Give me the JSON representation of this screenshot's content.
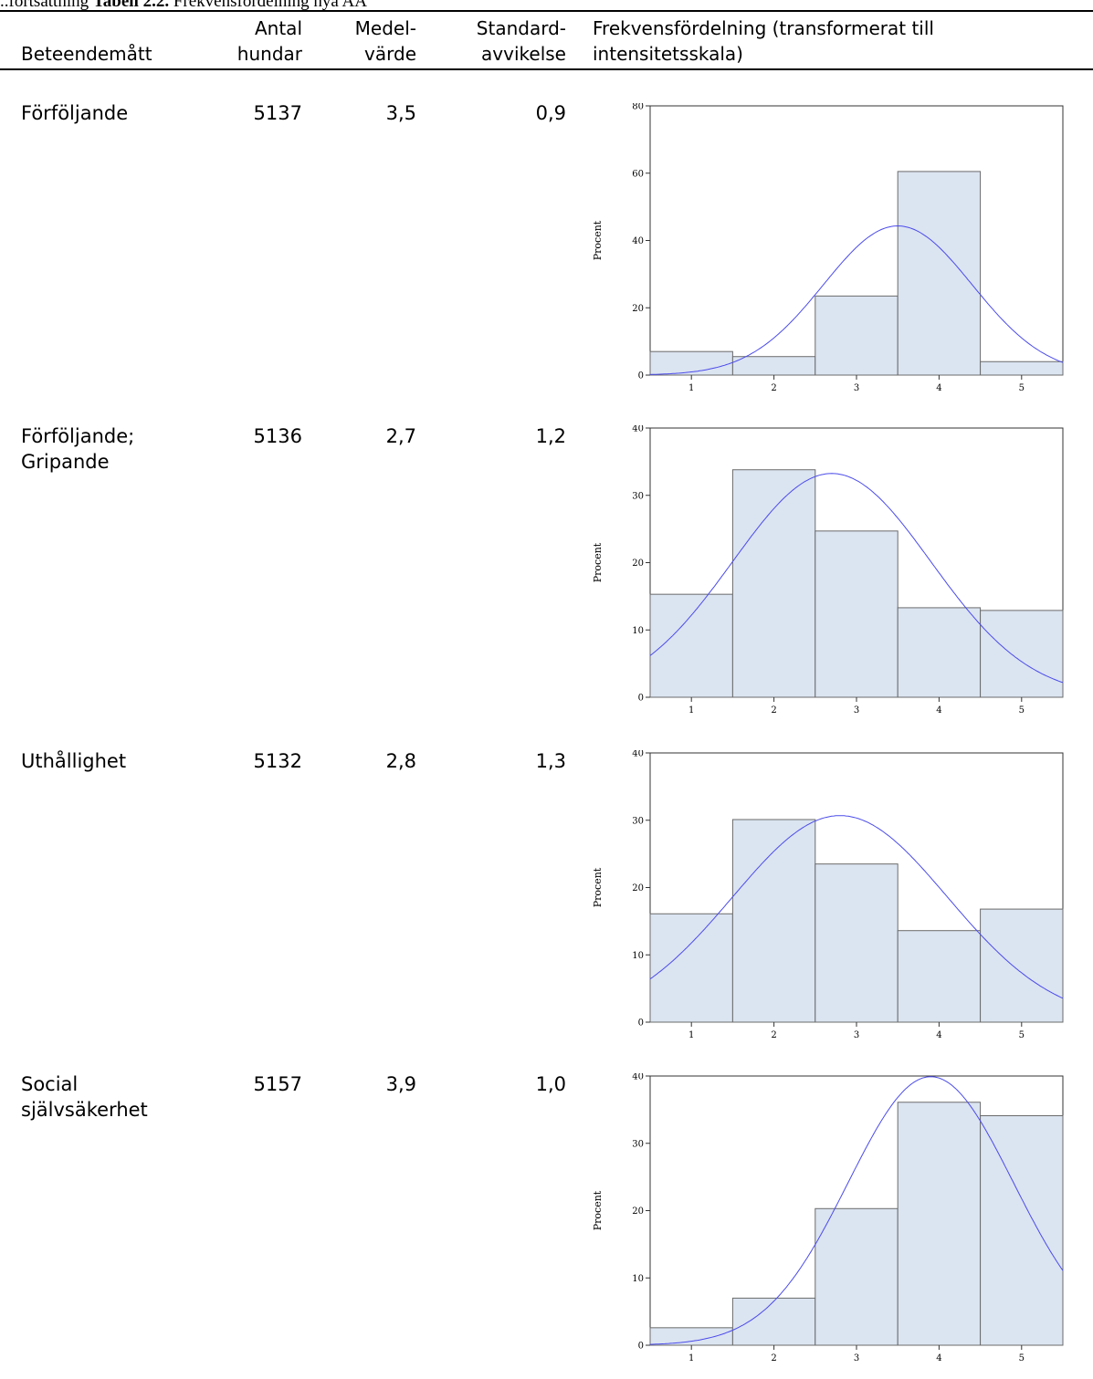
{
  "caption": {
    "prefix": "..fortsättning ",
    "table_label": "Tabell 2.2.",
    "rest": " Frekvensfördelning nya AA"
  },
  "header": {
    "col1": "Beteendemått",
    "col2_line1": "Antal",
    "col2_line2": "hundar",
    "col3_line1": "Medel-",
    "col3_line2": "värde",
    "col4_line1": "Standard-",
    "col4_line2": "avvikelse",
    "col5_line1": "Frekvensfördelning (transformerat till",
    "col5_line2": "intensitetsskala)"
  },
  "rows": [
    {
      "name_line1": "Förföljande",
      "name_line2": "",
      "n": "5137",
      "mean": "3,5",
      "sd": "0,9"
    },
    {
      "name_line1": "Förföljande;",
      "name_line2": "Gripande",
      "n": "5136",
      "mean": "2,7",
      "sd": "1,2"
    },
    {
      "name_line1": "Uthållighet",
      "name_line2": "",
      "n": "5132",
      "mean": "2,8",
      "sd": "1,3"
    },
    {
      "name_line1": "Social",
      "name_line2": "självsäkerhet",
      "n": "5157",
      "mean": "3,9",
      "sd": "1,0"
    }
  ],
  "colors": {
    "bar_fill": "#dbe4f1",
    "bar_stroke": "#6b6b6b",
    "curve": "#4b4bea"
  },
  "chart_data": [
    {
      "type": "bar",
      "categories": [
        "1",
        "2",
        "3",
        "4",
        "5"
      ],
      "values": [
        7,
        5.5,
        23.5,
        60.5,
        4
      ],
      "normal_curve": {
        "mean": 3.5,
        "sd": 0.9
      },
      "ylabel": "Procent",
      "ylim": [
        0,
        80
      ],
      "yticks": [
        0,
        20,
        40,
        60,
        80
      ],
      "grid": false
    },
    {
      "type": "bar",
      "categories": [
        "1",
        "2",
        "3",
        "4",
        "5"
      ],
      "values": [
        15.3,
        33.8,
        24.7,
        13.3,
        12.9
      ],
      "normal_curve": {
        "mean": 2.7,
        "sd": 1.2
      },
      "ylabel": "Procent",
      "ylim": [
        0,
        40
      ],
      "yticks": [
        0,
        10,
        20,
        30,
        40
      ],
      "grid": false
    },
    {
      "type": "bar",
      "categories": [
        "1",
        "2",
        "3",
        "4",
        "5"
      ],
      "values": [
        16.1,
        30.1,
        23.5,
        13.6,
        16.8
      ],
      "normal_curve": {
        "mean": 2.8,
        "sd": 1.3
      },
      "ylabel": "Procent",
      "ylim": [
        0,
        40
      ],
      "yticks": [
        0,
        10,
        20,
        30,
        40
      ],
      "grid": false
    },
    {
      "type": "bar",
      "categories": [
        "1",
        "2",
        "3",
        "4",
        "5"
      ],
      "values": [
        2.6,
        7,
        20.3,
        36.1,
        34.1
      ],
      "normal_curve": {
        "mean": 3.9,
        "sd": 1.0
      },
      "ylabel": "Procent",
      "ylim": [
        0,
        40
      ],
      "yticks": [
        0,
        10,
        20,
        30,
        40
      ],
      "grid": false
    }
  ]
}
